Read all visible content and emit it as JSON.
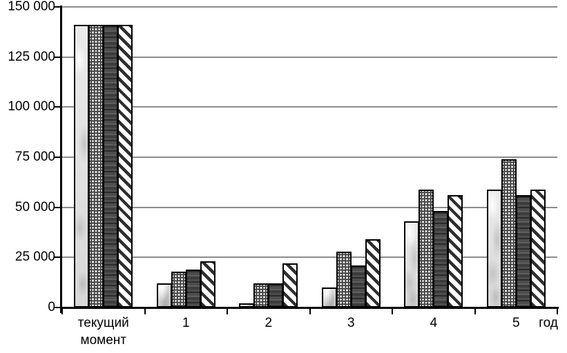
{
  "chart_data": {
    "type": "bar",
    "title": "",
    "xlabel": "год",
    "ylabel": "",
    "ylim": [
      0,
      150000
    ],
    "ytick_step": 25000,
    "ytick_labels": [
      "0",
      "25 000",
      "50 000",
      "75 000",
      "100 000",
      "125 000",
      "150 000"
    ],
    "categories": [
      "текущий момент",
      "1",
      "2",
      "3",
      "4",
      "5"
    ],
    "series": [
      {
        "name": "series-light-marble",
        "pattern": "light",
        "values": [
          141000,
          12000,
          2000,
          10000,
          43000,
          59000
        ]
      },
      {
        "name": "series-circle-pattern",
        "pattern": "dots",
        "values": [
          141000,
          18000,
          12000,
          28000,
          59000,
          74000
        ]
      },
      {
        "name": "series-dark-marble",
        "pattern": "dark",
        "values": [
          141000,
          19000,
          12000,
          21000,
          48000,
          56000
        ]
      },
      {
        "name": "series-diagonal-stripes",
        "pattern": "diag",
        "values": [
          141000,
          23000,
          22000,
          34000,
          56000,
          59000
        ]
      }
    ],
    "grid": true,
    "legend_position": "none",
    "colors": {
      "axis": "#000000",
      "gridline": "#8c8c8c",
      "bar_border": "#000000",
      "background": "#ffffff"
    }
  }
}
